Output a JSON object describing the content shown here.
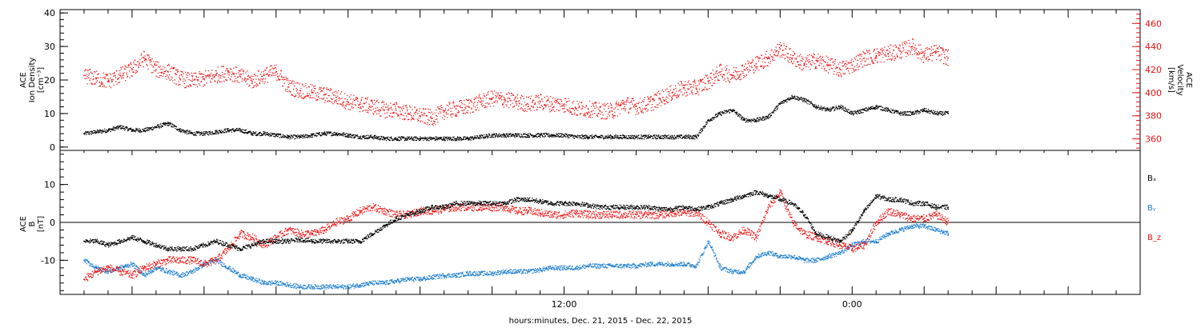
{
  "chart_data": [
    {
      "type": "scatter",
      "panel": "top",
      "ylabel_lines": [
        "ACE",
        "Ion Density",
        "[cm⁻³]"
      ],
      "y2label_lines": [
        "ACE",
        "Velocity",
        "[km/s]"
      ],
      "ylim": [
        -1,
        41
      ],
      "y_ticks": [
        "0",
        "10",
        "20",
        "30",
        "40"
      ],
      "y2lim": [
        350,
        472
      ],
      "y2_ticks": [
        "360",
        "380",
        "400",
        "420",
        "440",
        "460"
      ],
      "series": [
        {
          "color": "#000000",
          "axis": "left",
          "x": [
            -8,
            -7.5,
            -7,
            -6.5,
            -6,
            -5.5,
            -5,
            -4.5,
            -4,
            -3.5,
            -3,
            -2.5,
            -2,
            -1.5,
            -1,
            -0.5,
            0,
            0.5,
            1,
            1.5,
            2,
            2.5,
            3,
            3.5,
            4,
            4.5,
            5,
            5.5,
            6,
            6.5,
            7,
            7.5,
            8,
            8.5,
            9,
            9.5,
            10,
            10.5,
            11,
            11.5,
            12,
            12.5,
            13,
            13.5,
            14,
            14.5,
            15,
            15.5,
            16,
            16.5,
            17,
            17.5,
            18,
            18.5,
            19,
            19.5,
            20,
            20.5,
            21,
            21.5,
            22,
            22.5,
            23,
            23.5,
            24,
            24.5,
            25,
            25.5,
            26,
            26.5,
            27,
            27.5,
            28
          ],
          "y": [
            4,
            4.5,
            5,
            6,
            5,
            5,
            6,
            7,
            5,
            4,
            4,
            4.5,
            5,
            5,
            4,
            4,
            3.5,
            3,
            3,
            3.5,
            4,
            4,
            3.5,
            3,
            3,
            2.5,
            2.5,
            2.5,
            2.5,
            2.5,
            2.5,
            2.5,
            2.5,
            3,
            3.5,
            3.5,
            3.5,
            3.5,
            3.5,
            3.5,
            3.5,
            3,
            3,
            3,
            3,
            3,
            3,
            3,
            3,
            3,
            3,
            3,
            8,
            10,
            11,
            8,
            8,
            9,
            13,
            15,
            14,
            12,
            11,
            12,
            10,
            11,
            12,
            11,
            10,
            10,
            11,
            10,
            10
          ]
        },
        {
          "color": "#ee1111",
          "axis": "right",
          "x": [
            -8,
            -7.5,
            -7,
            -6.5,
            -6,
            -5.5,
            -5,
            -4.5,
            -4,
            -3.5,
            -3,
            -2.5,
            -2,
            -1.5,
            -1,
            -0.5,
            0,
            0.5,
            1,
            1.5,
            2,
            2.5,
            3,
            3.5,
            4,
            4.5,
            5,
            5.5,
            6,
            6.5,
            7,
            7.5,
            8,
            8.5,
            9,
            9.5,
            10,
            10.5,
            11,
            11.5,
            12,
            12.5,
            13,
            13.5,
            14,
            14.5,
            15,
            15.5,
            16,
            16.5,
            17,
            17.5,
            18,
            18.5,
            19,
            19.5,
            20,
            20.5,
            21,
            21.5,
            22,
            22.5,
            23,
            23.5,
            24,
            24.5,
            25,
            25.5,
            26,
            26.5,
            27,
            27.5,
            28
          ],
          "y": [
            415,
            412,
            410,
            415,
            420,
            430,
            420,
            418,
            412,
            410,
            412,
            415,
            418,
            414,
            410,
            415,
            418,
            405,
            402,
            400,
            398,
            396,
            392,
            390,
            388,
            385,
            385,
            382,
            380,
            378,
            384,
            386,
            388,
            392,
            395,
            394,
            392,
            390,
            392,
            390,
            390,
            386,
            386,
            384,
            384,
            390,
            388,
            390,
            395,
            400,
            404,
            404,
            410,
            418,
            415,
            420,
            425,
            430,
            438,
            430,
            425,
            428,
            424,
            420,
            424,
            430,
            432,
            434,
            436,
            440,
            432,
            435,
            430
          ]
        }
      ]
    },
    {
      "type": "scatter",
      "panel": "bottom",
      "ylabel_lines": [
        "ACE",
        "B",
        "[nT]"
      ],
      "ylim": [
        -19,
        19
      ],
      "y_ticks": [
        "-10",
        "0",
        "10"
      ],
      "zero_line": true,
      "legend_labels": [
        "Bₓ",
        "Bᵧ",
        "B_z"
      ],
      "legend_colors": [
        "#000000",
        "#1e7fd0",
        "#ee1111"
      ],
      "series": [
        {
          "name": "Bₓ",
          "color": "#000000",
          "x": [
            -8,
            -7.5,
            -7,
            -6.5,
            -6,
            -5.5,
            -5,
            -4.5,
            -4,
            -3.5,
            -3,
            -2.5,
            -2,
            -1.5,
            -1,
            -0.5,
            0,
            0.5,
            1,
            1.5,
            2,
            2.5,
            3,
            3.5,
            4,
            4.5,
            5,
            5.5,
            6,
            6.5,
            7,
            7.5,
            8,
            8.5,
            9,
            9.5,
            10,
            10.5,
            11,
            11.5,
            12,
            12.5,
            13,
            13.5,
            14,
            14.5,
            15,
            15.5,
            16,
            16.5,
            17,
            17.5,
            18,
            18.5,
            19,
            19.5,
            20,
            20.5,
            21,
            21.5,
            22,
            22.5,
            23,
            23.5,
            24,
            24.5,
            25,
            25.5,
            26,
            26.5,
            27,
            27.5,
            28
          ],
          "y": [
            -5,
            -5,
            -6,
            -5,
            -4,
            -5,
            -6,
            -7,
            -7,
            -7,
            -6,
            -5,
            -6,
            -7,
            -6,
            -5,
            -5,
            -5,
            -4.5,
            -5,
            -5,
            -5,
            -5,
            -5,
            -3,
            -1,
            1,
            2,
            3,
            4,
            4,
            5,
            5,
            5,
            5,
            5,
            6,
            6,
            5.5,
            5,
            5,
            5,
            4.5,
            4,
            4,
            4,
            4,
            4,
            3.5,
            3.5,
            4,
            3.5,
            4,
            5,
            6,
            7,
            8,
            7,
            6,
            5,
            2,
            -3,
            -4,
            -5,
            -2,
            3,
            7,
            6,
            6,
            5,
            5,
            4,
            4
          ]
        },
        {
          "name": "Bᵧ",
          "color": "#1e7fd0",
          "x": [
            -8,
            -7.5,
            -7,
            -6.5,
            -6,
            -5.5,
            -5,
            -4.5,
            -4,
            -3.5,
            -3,
            -2.5,
            -2,
            -1.5,
            -1,
            -0.5,
            0,
            0.5,
            1,
            1.5,
            2,
            2.5,
            3,
            3.5,
            4,
            4.5,
            5,
            5.5,
            6,
            6.5,
            7,
            7.5,
            8,
            8.5,
            9,
            9.5,
            10,
            10.5,
            11,
            11.5,
            12,
            12.5,
            13,
            13.5,
            14,
            14.5,
            15,
            15.5,
            16,
            16.5,
            17,
            17.5,
            18,
            18.5,
            19,
            19.5,
            20,
            20.5,
            21,
            21.5,
            22,
            22.5,
            23,
            23.5,
            24,
            24.5,
            25,
            25.5,
            26,
            26.5,
            27,
            27.5,
            28
          ],
          "y": [
            -10,
            -12,
            -13,
            -12,
            -11,
            -14,
            -12,
            -13,
            -14,
            -13,
            -11,
            -10,
            -12,
            -14,
            -15,
            -16,
            -16,
            -16.5,
            -17,
            -17,
            -17,
            -17,
            -17,
            -16.5,
            -16,
            -16,
            -15.5,
            -15,
            -15,
            -14.5,
            -14,
            -14,
            -13.5,
            -13.5,
            -13.5,
            -13,
            -13,
            -13,
            -12.5,
            -12,
            -12,
            -12,
            -11.5,
            -11.5,
            -11.5,
            -11.5,
            -11.5,
            -11,
            -11,
            -11,
            -11,
            -11.5,
            -5,
            -12,
            -13,
            -13,
            -9,
            -8,
            -9,
            -9,
            -10,
            -10,
            -9,
            -8,
            -6,
            -5,
            -5,
            -3,
            -2,
            -1,
            -1,
            -2,
            -3
          ]
        },
        {
          "name": "B_z",
          "color": "#ee1111",
          "x": [
            -8,
            -7.5,
            -7,
            -6.5,
            -6,
            -5.5,
            -5,
            -4.5,
            -4,
            -3.5,
            -3,
            -2.5,
            -2,
            -1.5,
            -1,
            -0.5,
            0,
            0.5,
            1,
            1.5,
            2,
            2.5,
            3,
            3.5,
            4,
            4.5,
            5,
            5.5,
            6,
            6.5,
            7,
            7.5,
            8,
            8.5,
            9,
            9.5,
            10,
            10.5,
            11,
            11.5,
            12,
            12.5,
            13,
            13.5,
            14,
            14.5,
            15,
            15.5,
            16,
            16.5,
            17,
            17.5,
            18,
            18.5,
            19,
            19.5,
            20,
            20.5,
            21,
            21.5,
            22,
            22.5,
            23,
            23.5,
            24,
            24.5,
            25,
            25.5,
            26,
            26.5,
            27,
            27.5,
            28
          ],
          "y": [
            -15,
            -13,
            -12,
            -13,
            -14,
            -12,
            -11,
            -10,
            -10,
            -10,
            -11,
            -10,
            -7,
            -3,
            -4,
            -6,
            -4,
            -2,
            -3,
            -3,
            -2,
            0,
            1,
            3,
            4,
            3,
            2,
            2,
            3,
            3,
            3.5,
            4,
            4,
            4,
            4,
            4,
            3,
            3,
            2.5,
            2,
            2,
            2.5,
            2,
            2,
            2,
            2,
            2,
            2,
            2,
            2.5,
            2.5,
            2.5,
            0,
            -3,
            -4,
            -2,
            -4,
            4,
            8,
            0,
            -3,
            -4,
            -5,
            -6,
            -7,
            -6,
            0,
            3,
            2,
            1,
            1,
            2,
            0
          ]
        }
      ]
    },
    {
      "type": "axis",
      "xlabel": "hours:minutes, Dec. 21, 2015 - Dec. 22, 2015",
      "xlim": [
        -9,
        36
      ],
      "x_tick_labels": [
        {
          "x": 12,
          "label": "12:00"
        },
        {
          "x": 24,
          "label": "0:00"
        }
      ],
      "minor_tick_interval_hours": 1,
      "major_tick_interval_hours": 3
    }
  ]
}
